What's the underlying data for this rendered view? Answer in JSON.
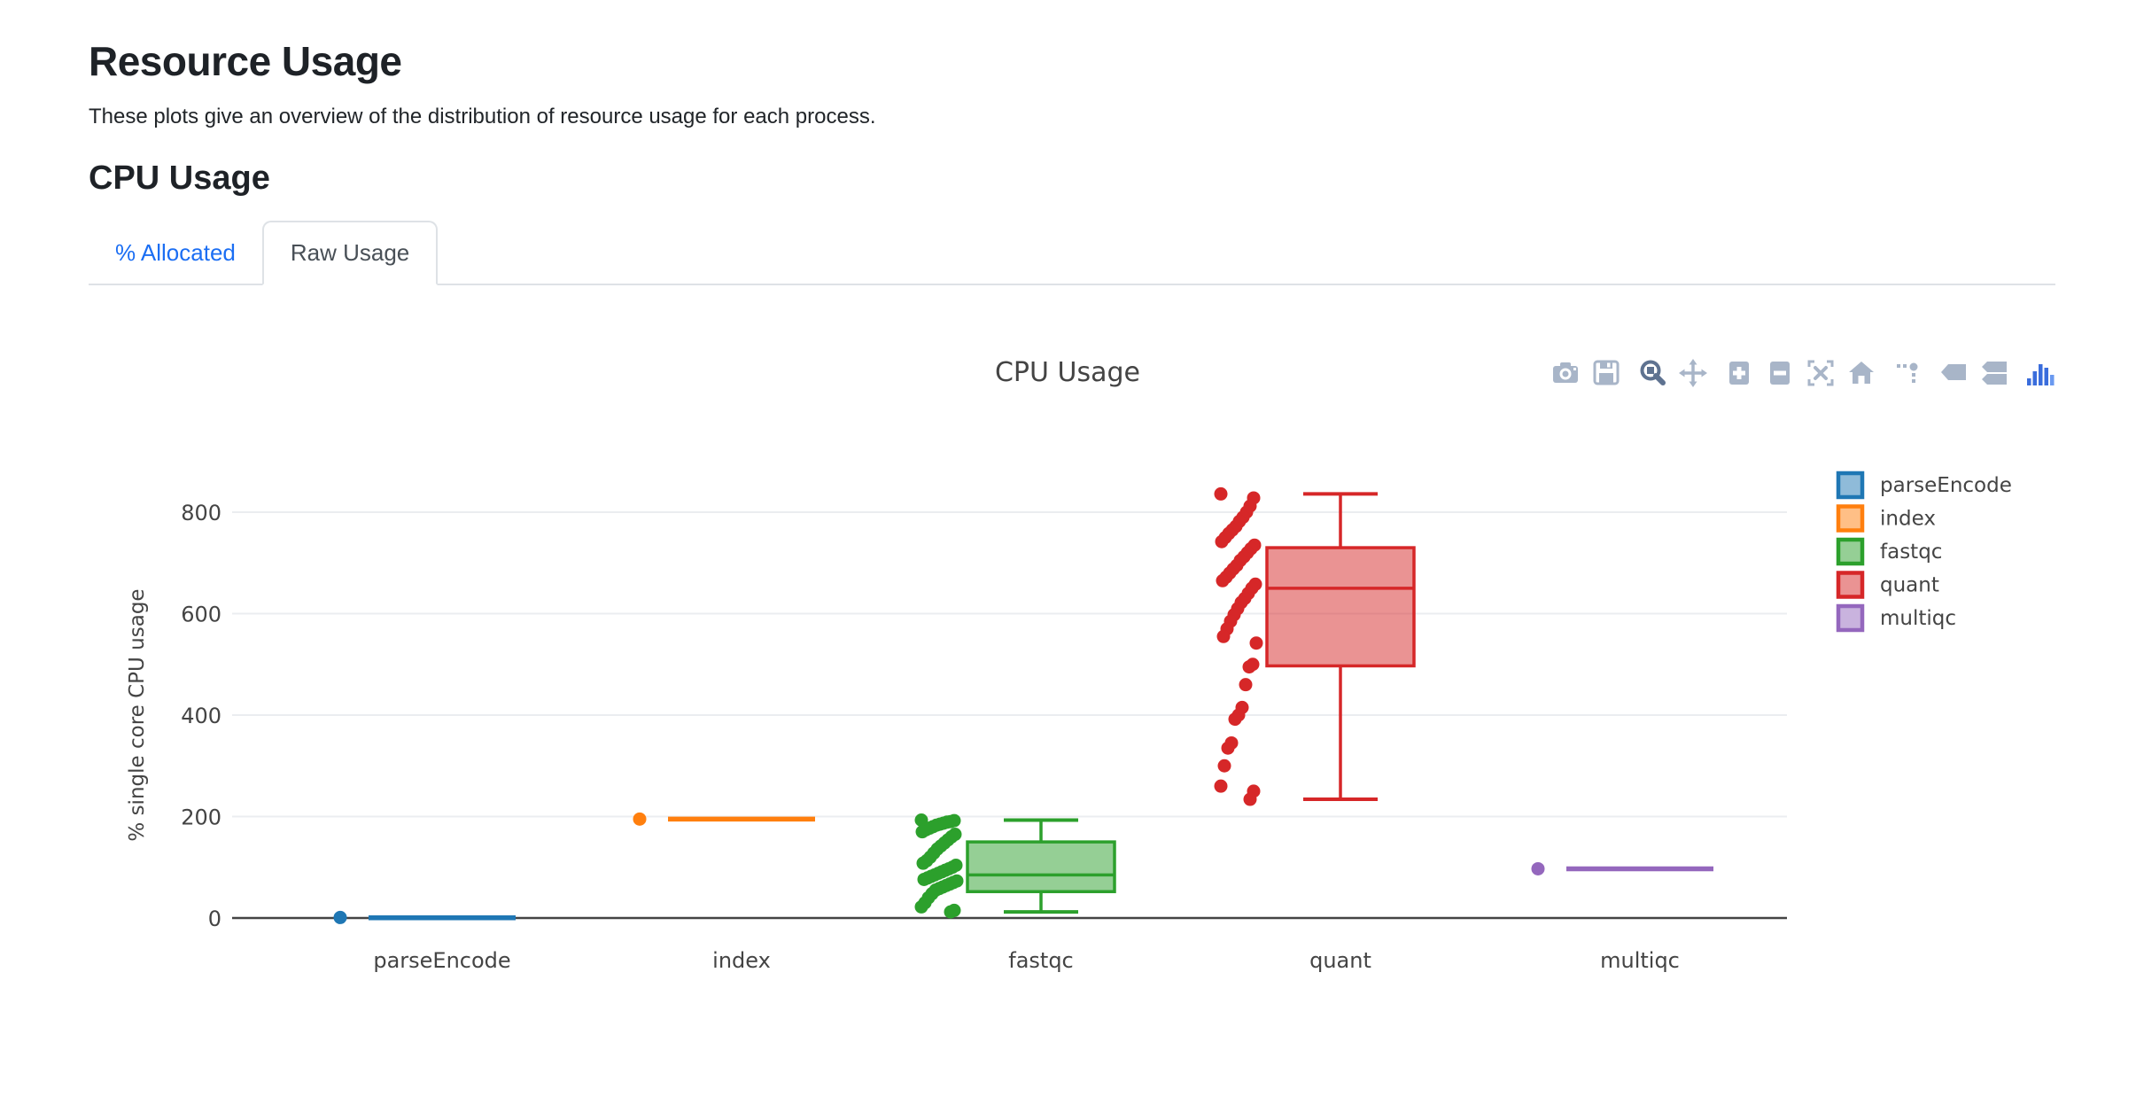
{
  "page": {
    "title": "Resource Usage",
    "subtitle": "These plots give an overview of the distribution of resource usage for each process.",
    "section_heading": "CPU Usage",
    "tabs": [
      {
        "label": "% Allocated",
        "active": false
      },
      {
        "label": "Raw Usage",
        "active": true
      }
    ]
  },
  "toolbar": {
    "groups": [
      [
        "camera-icon",
        "save-icon"
      ],
      [
        "zoom-icon",
        "pan-icon"
      ],
      [
        "zoom-in-icon",
        "zoom-out-icon",
        "autoscale-icon",
        "reset-axes-icon"
      ],
      [
        "spikelines-icon"
      ],
      [
        "hover-closest-icon",
        "hover-compare-icon"
      ],
      [
        "plotly-logo-icon"
      ]
    ],
    "active_icon": "zoom-icon"
  },
  "colors": {
    "link_blue": "#1b6ef3",
    "tab_border": "#dee2e6",
    "tab_active_text": "#495057",
    "icon_gray": "#a8b5c8",
    "icon_active": "#5e7290",
    "logo_blue": "#3a6ddc",
    "logo_blue_light": "#6a99f0",
    "axis_text": "#444444",
    "grid": "#ebedf0",
    "zeroline": "#444444"
  },
  "chart_data": {
    "type": "box",
    "title": "CPU Usage",
    "ylabel": "% single core CPU usage",
    "yticks": [
      0,
      200,
      400,
      600,
      800
    ],
    "ylim": [
      0,
      870
    ],
    "grid": true,
    "legend_position": "right",
    "categories": [
      "parseEncode",
      "index",
      "fastqc",
      "quant",
      "multiqc"
    ],
    "series": [
      {
        "name": "parseEncode",
        "color": "#1f77b4",
        "stats": {
          "min": 0,
          "q1": 0,
          "median": 0.5,
          "q3": 1,
          "max": 1
        },
        "points": [
          1
        ]
      },
      {
        "name": "index",
        "color": "#ff7f0e",
        "stats": {
          "min": 195,
          "q1": 195,
          "median": 195,
          "q3": 195,
          "max": 195
        },
        "points": [
          195
        ]
      },
      {
        "name": "fastqc",
        "color": "#2ca02c",
        "stats": {
          "min": 12,
          "q1": 52,
          "median": 85,
          "q3": 150,
          "max": 193
        },
        "points": [
          193,
          192,
          190,
          189,
          187,
          185,
          183,
          180,
          177,
          174,
          170,
          165,
          160,
          154,
          148,
          142,
          136,
          128,
          120,
          113,
          108,
          104,
          100,
          97,
          94,
          91,
          88,
          85,
          82,
          79,
          76,
          73,
          70,
          67,
          64,
          61,
          58,
          55,
          48,
          40,
          30,
          22,
          15,
          12
        ]
      },
      {
        "name": "quant",
        "color": "#d62728",
        "stats": {
          "min": 234,
          "q1": 497,
          "median": 650,
          "q3": 730,
          "max": 836
        },
        "points": [
          836,
          828,
          812,
          800,
          790,
          782,
          772,
          765,
          758,
          750,
          742,
          735,
          728,
          720,
          712,
          705,
          695,
          688,
          680,
          672,
          665,
          658,
          650,
          640,
          630,
          622,
          610,
          598,
          585,
          570,
          555,
          542,
          500,
          495,
          460,
          415,
          400,
          392,
          345,
          335,
          300,
          260,
          250,
          234
        ]
      },
      {
        "name": "multiqc",
        "color": "#9467bd",
        "stats": {
          "min": 97,
          "q1": 97,
          "median": 97,
          "q3": 97,
          "max": 97
        },
        "points": [
          97
        ]
      }
    ]
  }
}
